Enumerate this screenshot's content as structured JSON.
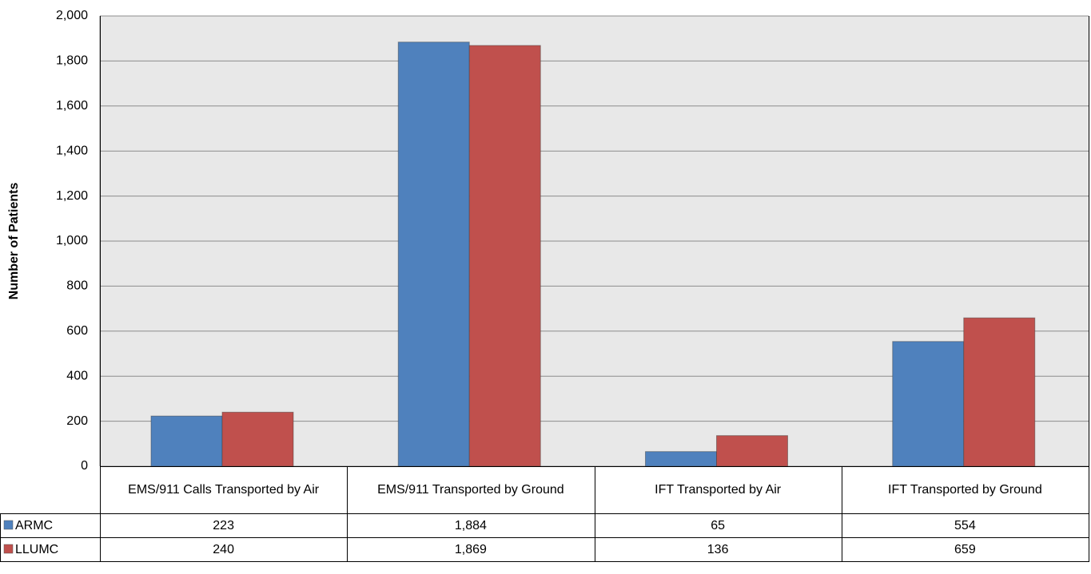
{
  "chart_data": {
    "type": "bar",
    "y_label": "Number of Patients",
    "categories": [
      "EMS/911 Calls Transported by Air",
      "EMS/911 Transported by Ground",
      "IFT Transported by Air",
      "IFT Transported by Ground"
    ],
    "series": [
      {
        "name": "ARMC",
        "color": "#4f81bd",
        "values": [
          223,
          1884,
          65,
          554
        ],
        "value_labels": [
          "223",
          "1,884",
          "65",
          "554"
        ]
      },
      {
        "name": "LLUMC",
        "color": "#c0504d",
        "values": [
          240,
          1869,
          136,
          659
        ],
        "value_labels": [
          "240",
          "1,869",
          "136",
          "659"
        ]
      }
    ],
    "ylim": [
      0,
      2000
    ],
    "yticks": [
      0,
      200,
      400,
      600,
      800,
      {
        "value": 1000,
        "label": "1,000"
      },
      {
        "value": 1200,
        "label": "1,200"
      },
      {
        "value": 1400,
        "label": "1,400"
      },
      {
        "value": 1600,
        "label": "1,600"
      },
      {
        "value": 1800,
        "label": "1,800"
      },
      {
        "value": 2000,
        "label": "2,000"
      }
    ],
    "grid": true
  }
}
